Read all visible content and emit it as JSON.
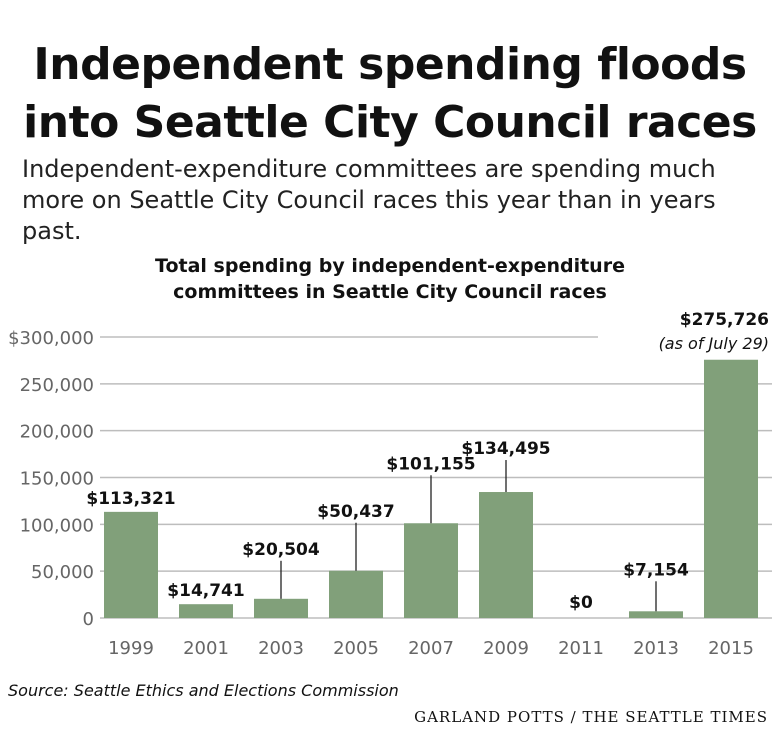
{
  "headline_line1": "Independent spending floods",
  "headline_line2": "into Seattle City Council races",
  "subtitle_line1": "Independent-expenditure committees are spending much",
  "subtitle_line2": "more on Seattle City Council races this year than in years past.",
  "source": "Source: Seattle Ethics and Elections Commission",
  "credit": "GARLAND POTTS / THE SEATTLE TIMES",
  "colors": {
    "bar": "#81a07a",
    "grid": "#bdbdbd",
    "leader": "#222222",
    "axis_text": "#666666"
  },
  "chart_data": {
    "type": "bar",
    "title_line1": "Total spending by independent-expenditure",
    "title_line2": "committees in Seattle City Council races",
    "categories": [
      "1999",
      "2001",
      "2003",
      "2005",
      "2007",
      "2009",
      "2011",
      "2013",
      "2015"
    ],
    "values": [
      113321,
      14741,
      20504,
      50437,
      101155,
      134495,
      0,
      7154,
      275726
    ],
    "value_labels": [
      "$113,321",
      "$14,741",
      "$20,504",
      "$50,437",
      "$101,155",
      "$134,495",
      "$0",
      "$7,154",
      "$275,726"
    ],
    "annotation": "(as of July 29)",
    "ylim": [
      0,
      300000
    ],
    "yticks": [
      0,
      50000,
      100000,
      150000,
      200000,
      250000,
      300000
    ],
    "ytick_labels": [
      "0",
      "50,000",
      "100,000",
      "150,000",
      "200,000",
      "250,000",
      "$300,000"
    ],
    "grid": true,
    "xlabel": "",
    "ylabel": ""
  }
}
